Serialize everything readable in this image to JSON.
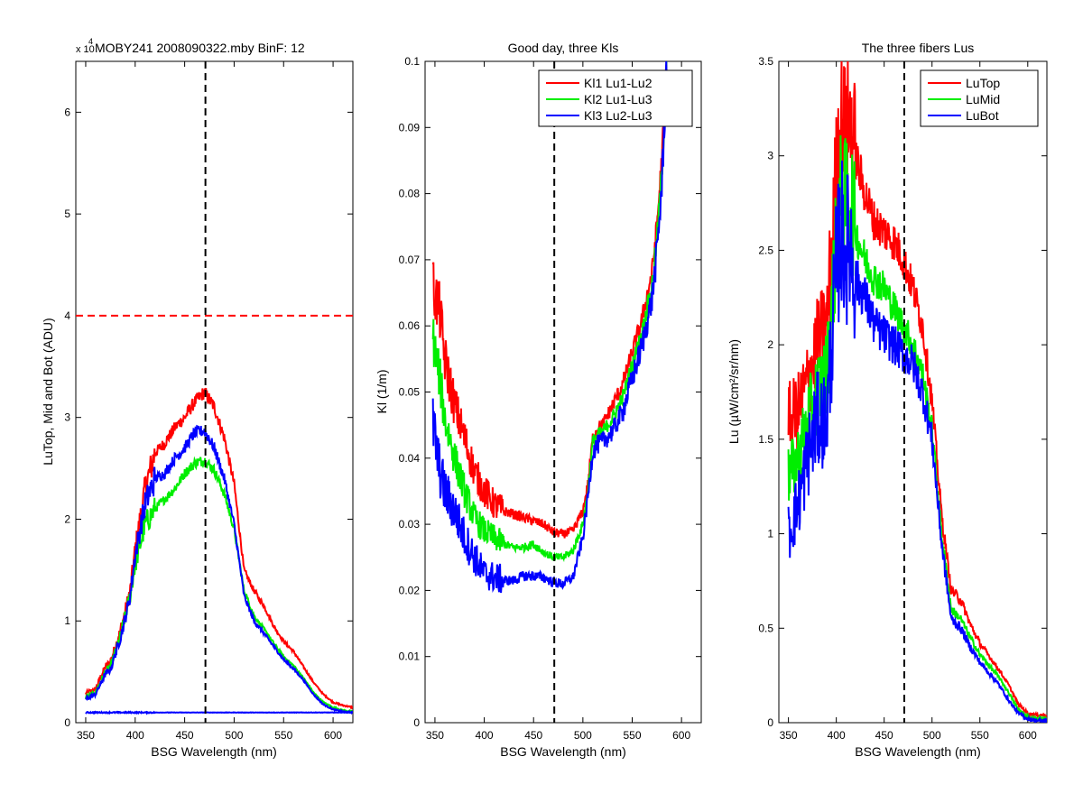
{
  "figure": {
    "background": "#ffffff",
    "axes_color": "#000000"
  },
  "chart_data": [
    {
      "type": "line",
      "title": "MOBY241  2008090322.mby BinF: 12",
      "exponent_label": "x 10",
      "exponent_power": "4",
      "xlabel": "BSG Wavelength (nm)",
      "ylabel": "LuTop, Mid and Bot (ADU)",
      "xlim": [
        340,
        620
      ],
      "ylim": [
        0,
        65000
      ],
      "xticks": [
        350,
        400,
        450,
        500,
        550,
        600
      ],
      "xtick_labels": [
        "350",
        "400",
        "450",
        "500",
        "550",
        "600"
      ],
      "yticks": [
        0,
        10000,
        20000,
        30000,
        40000,
        50000,
        60000
      ],
      "ytick_labels": [
        "0",
        "1",
        "2",
        "3",
        "4",
        "5",
        "6"
      ],
      "grid": false,
      "legend": null,
      "series": [
        {
          "color": "#ff0000",
          "noise": 0.035,
          "x": [
            350,
            360,
            365,
            370,
            375,
            380,
            385,
            390,
            395,
            400,
            410,
            420,
            430,
            440,
            450,
            460,
            470,
            480,
            490,
            500,
            510,
            520,
            530,
            540,
            550,
            560,
            570,
            580,
            590,
            600,
            610,
            620
          ],
          "y": [
            2900,
            3300,
            4500,
            5500,
            6000,
            7500,
            9000,
            11000,
            13000,
            17000,
            23000,
            26500,
            27500,
            29000,
            30000,
            31500,
            32500,
            31000,
            28000,
            23500,
            15000,
            13000,
            11500,
            9500,
            8000,
            7000,
            5500,
            4000,
            2800,
            2000,
            1700,
            1500
          ]
        },
        {
          "color": "#00ee00",
          "noise": 0.035,
          "x": [
            350,
            360,
            365,
            370,
            375,
            380,
            385,
            390,
            395,
            400,
            410,
            420,
            430,
            440,
            450,
            460,
            470,
            480,
            490,
            500,
            510,
            520,
            530,
            540,
            550,
            560,
            570,
            580,
            590,
            600,
            610,
            620
          ],
          "y": [
            2500,
            3000,
            4000,
            5000,
            5500,
            7000,
            8500,
            10500,
            12500,
            15500,
            19500,
            21000,
            22000,
            23000,
            24500,
            25500,
            25800,
            24800,
            22500,
            19000,
            13000,
            10500,
            9200,
            7800,
            6500,
            5600,
            4400,
            3000,
            2000,
            1500,
            1200,
            1100
          ]
        },
        {
          "color": "#0000ff",
          "noise": 0.035,
          "x": [
            350,
            360,
            365,
            370,
            375,
            380,
            385,
            390,
            395,
            400,
            410,
            420,
            430,
            440,
            450,
            460,
            470,
            480,
            490,
            500,
            510,
            520,
            530,
            540,
            550,
            560,
            570,
            580,
            590,
            600,
            610,
            620
          ],
          "y": [
            2300,
            2800,
            3800,
            4800,
            5200,
            6800,
            8300,
            10300,
            12500,
            16500,
            21500,
            24000,
            24500,
            26000,
            27000,
            28500,
            28700,
            27000,
            24000,
            19500,
            12500,
            10000,
            8800,
            7500,
            6200,
            5300,
            4200,
            2800,
            1800,
            1300,
            1100,
            1000
          ]
        },
        {
          "color": "#0000ff",
          "noise": 0.01,
          "x": [
            350,
            620
          ],
          "y": [
            1000,
            1000
          ]
        }
      ],
      "reference_lines": [
        {
          "orientation": "horizontal",
          "value": 40000,
          "color": "#ff0000",
          "dash": "dashed"
        },
        {
          "orientation": "vertical",
          "value": 471,
          "color": "#000000",
          "dash": "dashed"
        }
      ]
    },
    {
      "type": "line",
      "title": "Good day, three Kls",
      "xlabel": "BSG Wavelength (nm)",
      "ylabel": "Kl (1/m)",
      "xlim": [
        340,
        620
      ],
      "ylim": [
        0,
        0.1
      ],
      "xticks": [
        350,
        400,
        450,
        500,
        550,
        600
      ],
      "xtick_labels": [
        "350",
        "400",
        "450",
        "500",
        "550",
        "600"
      ],
      "yticks": [
        0,
        0.01,
        0.02,
        0.03,
        0.04,
        0.05,
        0.06,
        0.07,
        0.08,
        0.09,
        0.1
      ],
      "ytick_labels": [
        "0",
        "0.01",
        "0.02",
        "0.03",
        "0.04",
        "0.05",
        "0.06",
        "0.07",
        "0.08",
        "0.09",
        "0.1"
      ],
      "grid": false,
      "legend": "top-right",
      "series": [
        {
          "name": "Kl1 Lu1-Lu2",
          "color": "#ff0000",
          "noise": 0.04,
          "x": [
            348,
            355,
            360,
            370,
            380,
            390,
            400,
            410,
            420,
            430,
            440,
            450,
            460,
            470,
            480,
            490,
            500,
            505,
            510,
            515,
            520,
            530,
            540,
            550,
            560,
            570,
            575,
            580,
            585
          ],
          "y": [
            0.066,
            0.062,
            0.055,
            0.048,
            0.043,
            0.038,
            0.035,
            0.033,
            0.032,
            0.0315,
            0.031,
            0.0305,
            0.03,
            0.0288,
            0.0285,
            0.029,
            0.032,
            0.036,
            0.043,
            0.0445,
            0.045,
            0.048,
            0.051,
            0.056,
            0.061,
            0.068,
            0.075,
            0.085,
            0.1
          ]
        },
        {
          "name": "Kl2 Lu1-Lu3",
          "color": "#00ee00",
          "noise": 0.04,
          "x": [
            348,
            355,
            360,
            370,
            380,
            390,
            400,
            410,
            420,
            430,
            440,
            450,
            460,
            470,
            480,
            490,
            500,
            505,
            510,
            515,
            520,
            530,
            540,
            550,
            560,
            570,
            575,
            580,
            585
          ],
          "y": [
            0.058,
            0.052,
            0.046,
            0.04,
            0.035,
            0.031,
            0.029,
            0.028,
            0.027,
            0.0265,
            0.0265,
            0.027,
            0.0258,
            0.025,
            0.025,
            0.026,
            0.03,
            0.035,
            0.0425,
            0.0435,
            0.044,
            0.046,
            0.049,
            0.054,
            0.059,
            0.066,
            0.073,
            0.083,
            0.1
          ]
        },
        {
          "name": "Kl3 Lu2-Lu3",
          "color": "#0000ff",
          "noise": 0.06,
          "x": [
            348,
            355,
            360,
            370,
            380,
            390,
            400,
            410,
            420,
            430,
            440,
            450,
            460,
            470,
            480,
            490,
            500,
            505,
            510,
            515,
            520,
            530,
            540,
            550,
            560,
            570,
            575,
            580,
            585
          ],
          "y": [
            0.045,
            0.038,
            0.035,
            0.032,
            0.028,
            0.025,
            0.0225,
            0.022,
            0.0215,
            0.0215,
            0.0222,
            0.0222,
            0.022,
            0.0212,
            0.021,
            0.022,
            0.028,
            0.034,
            0.041,
            0.042,
            0.0425,
            0.044,
            0.047,
            0.052,
            0.057,
            0.064,
            0.071,
            0.081,
            0.1
          ]
        }
      ],
      "reference_lines": [
        {
          "orientation": "vertical",
          "value": 471,
          "color": "#000000",
          "dash": "dashed"
        }
      ]
    },
    {
      "type": "line",
      "title": "The three fibers Lus",
      "xlabel": "BSG Wavelength (nm)",
      "ylabel": "Lu (µW/cm²/sr/nm)",
      "xlim": [
        340,
        620
      ],
      "ylim": [
        0,
        3.5
      ],
      "xticks": [
        350,
        400,
        450,
        500,
        550,
        600
      ],
      "xtick_labels": [
        "350",
        "400",
        "450",
        "500",
        "550",
        "600"
      ],
      "yticks": [
        0,
        0.5,
        1,
        1.5,
        2,
        2.5,
        3,
        3.5
      ],
      "ytick_labels": [
        "0",
        "0.5",
        "1",
        "1.5",
        "2",
        "2.5",
        "3",
        "3.5"
      ],
      "grid": false,
      "legend": "top-right",
      "series": [
        {
          "name": "LuTop",
          "color": "#ff0000",
          "noise": 0.07,
          "x": [
            350,
            360,
            370,
            380,
            390,
            400,
            405,
            410,
            415,
            420,
            430,
            440,
            450,
            460,
            470,
            480,
            490,
            500,
            510,
            520,
            530,
            540,
            550,
            560,
            570,
            580,
            590,
            600,
            610,
            620
          ],
          "y": [
            1.6,
            1.65,
            1.8,
            2.0,
            2.1,
            2.9,
            3.2,
            3.1,
            3.2,
            3.0,
            2.8,
            2.65,
            2.6,
            2.55,
            2.45,
            2.3,
            2.1,
            1.7,
            1.1,
            0.7,
            0.65,
            0.52,
            0.42,
            0.35,
            0.28,
            0.2,
            0.1,
            0.05,
            0.04,
            0.04
          ]
        },
        {
          "name": "LuMid",
          "color": "#00ee00",
          "noise": 0.07,
          "x": [
            350,
            360,
            370,
            380,
            390,
            400,
            405,
            410,
            415,
            420,
            430,
            440,
            450,
            460,
            470,
            480,
            490,
            500,
            510,
            520,
            530,
            540,
            550,
            560,
            570,
            580,
            590,
            600,
            610,
            620
          ],
          "y": [
            1.3,
            1.4,
            1.6,
            1.75,
            1.85,
            2.55,
            2.8,
            2.75,
            2.8,
            2.6,
            2.45,
            2.35,
            2.3,
            2.2,
            2.1,
            2.0,
            1.85,
            1.55,
            1.0,
            0.6,
            0.55,
            0.45,
            0.36,
            0.3,
            0.24,
            0.16,
            0.07,
            0.03,
            0.02,
            0.02
          ]
        },
        {
          "name": "LuBot",
          "color": "#0000ff",
          "noise": 0.09,
          "x": [
            350,
            360,
            370,
            380,
            390,
            400,
            405,
            410,
            415,
            420,
            430,
            440,
            450,
            460,
            470,
            480,
            490,
            500,
            510,
            520,
            530,
            540,
            550,
            560,
            570,
            580,
            590,
            600,
            610,
            620
          ],
          "y": [
            1.0,
            1.15,
            1.4,
            1.6,
            1.6,
            2.4,
            2.6,
            2.5,
            2.55,
            2.35,
            2.25,
            2.1,
            2.05,
            2.0,
            1.95,
            1.9,
            1.75,
            1.5,
            0.95,
            0.55,
            0.5,
            0.4,
            0.32,
            0.26,
            0.2,
            0.12,
            0.05,
            0.02,
            0.01,
            0.01
          ]
        }
      ],
      "reference_lines": [
        {
          "orientation": "vertical",
          "value": 471,
          "color": "#000000",
          "dash": "dashed"
        }
      ]
    }
  ]
}
